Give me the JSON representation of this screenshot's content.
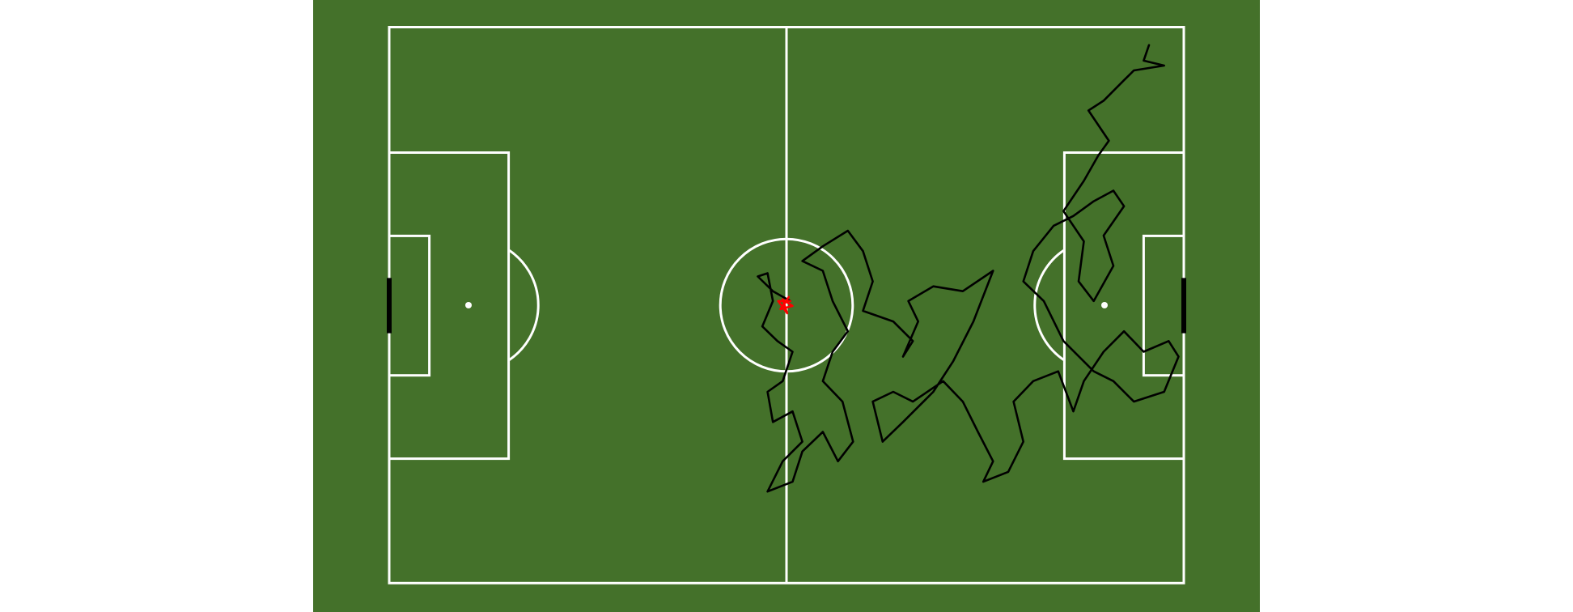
{
  "chart_data": {
    "type": "line",
    "xlim": [
      0,
      105
    ],
    "ylim": [
      0,
      68
    ],
    "series": [
      {
        "color": "#000000",
        "x": [
          53.0,
          50.7,
          48.7,
          50.0,
          50.7,
          49.3,
          51.3,
          53.3,
          52.0,
          50.0,
          50.7,
          53.3,
          54.6,
          52.0,
          50.0,
          53.3,
          54.6,
          57.3,
          59.3,
          61.3,
          59.9,
          57.3,
          58.6,
          60.6,
          58.6,
          57.3,
          54.6,
          57.3,
          60.6,
          62.6,
          63.9,
          62.6,
          66.6,
          69.2,
          67.9,
          69.9,
          68.6,
          71.9,
          75.8,
          79.8,
          77.2,
          74.5,
          71.9,
          67.9,
          65.2,
          63.9,
          66.6,
          69.2,
          73.2,
          75.8,
          77.8,
          79.8,
          78.5,
          81.8,
          83.8,
          82.5,
          85.1,
          88.4,
          90.4,
          91.8,
          94.4,
          97.1,
          99.7,
          103.0,
          104.3,
          102.4,
          98.4,
          95.7,
          93.1,
          89.1,
          86.5,
          83.8,
          85.1,
          87.8,
          90.4,
          93.1,
          95.7,
          97.1,
          94.4,
          95.7,
          93.1,
          91.1,
          91.8,
          89.1,
          91.8,
          93.7,
          95.1,
          92.4,
          94.4,
          97.1,
          98.4,
          102.4,
          99.7,
          100.4
        ],
        "values": [
          34.5,
          35.7,
          37.5,
          37.9,
          34.5,
          31.4,
          29.6,
          28.3,
          24.7,
          23.4,
          19.7,
          21.0,
          17.3,
          14.9,
          11.2,
          12.4,
          16.1,
          18.5,
          14.9,
          17.3,
          22.2,
          24.7,
          28.3,
          30.8,
          34.5,
          38.2,
          39.4,
          41.2,
          43.1,
          40.6,
          36.9,
          33.3,
          32.0,
          29.6,
          27.7,
          32.0,
          34.5,
          36.3,
          35.7,
          38.2,
          32.0,
          27.1,
          23.4,
          19.7,
          17.3,
          22.2,
          23.4,
          22.2,
          24.7,
          22.2,
          18.5,
          14.9,
          12.4,
          13.6,
          17.3,
          22.2,
          24.7,
          25.9,
          21.0,
          24.7,
          28.3,
          30.8,
          28.3,
          29.6,
          27.7,
          23.4,
          22.2,
          24.7,
          25.9,
          29.6,
          34.5,
          36.9,
          40.6,
          43.7,
          44.9,
          46.7,
          48.0,
          46.1,
          42.5,
          38.8,
          34.5,
          36.9,
          41.8,
          45.5,
          49.2,
          52.3,
          54.1,
          57.8,
          59.0,
          61.5,
          62.7,
          63.3,
          63.9,
          65.8
        ]
      },
      {
        "color": "#ff0000",
        "x": [
          52.2,
          52.8,
          51.7,
          53.3,
          52.0,
          52.6,
          51.4,
          53.0
        ],
        "values": [
          34.1,
          35.0,
          33.5,
          33.9,
          34.7,
          33.0,
          34.5,
          34.5
        ]
      }
    ]
  }
}
